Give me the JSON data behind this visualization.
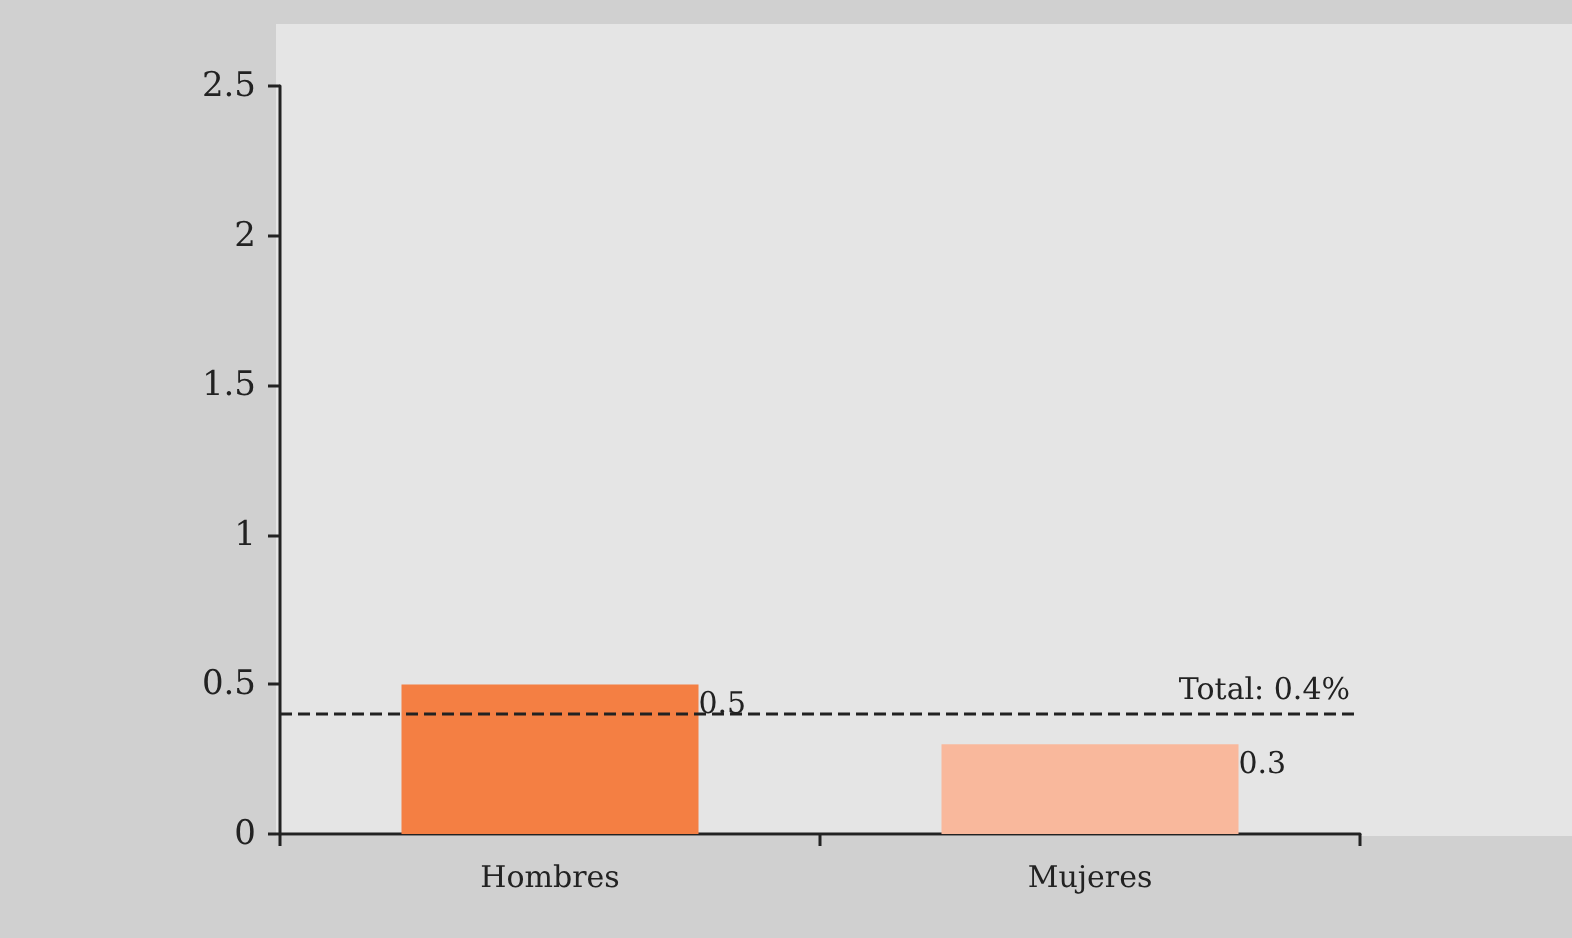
{
  "chart_data": {
    "type": "bar",
    "categories": [
      "Hombres",
      "Mujeres"
    ],
    "values": [
      0.5,
      0.3
    ],
    "colors": [
      "#f47f43",
      "#f9b89c"
    ],
    "data_labels": true,
    "ylim": [
      0,
      2.5
    ],
    "yticks": [
      0,
      0.5,
      1,
      1.5,
      2,
      2.5
    ],
    "grid": false,
    "ref_lines": [
      {
        "axis": "y",
        "value": 0.4,
        "label": "Total: 0.4%",
        "color": "#222222",
        "line_style": "dashed"
      }
    ]
  }
}
